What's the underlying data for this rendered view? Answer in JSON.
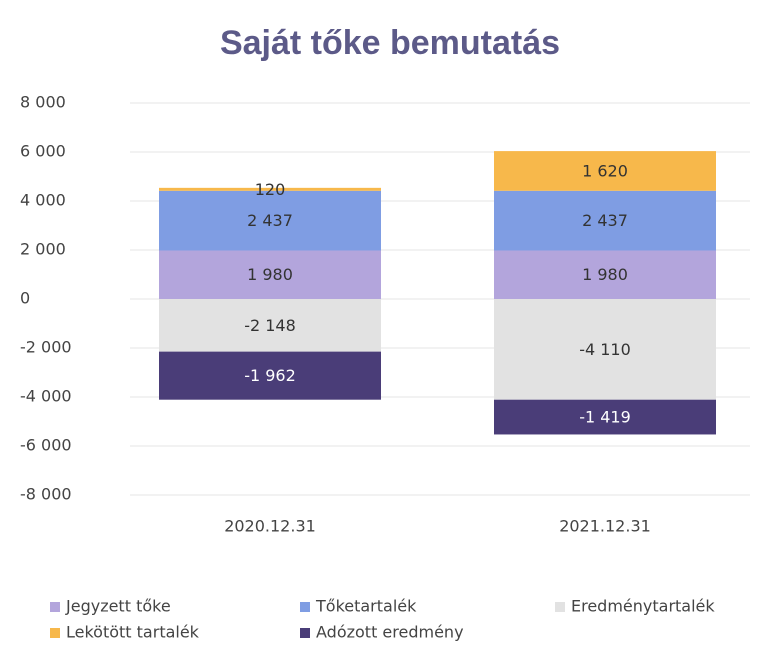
{
  "chart_data": {
    "type": "stacked_bar",
    "title": "Saját tőke bemutatás",
    "categories": [
      "2020.12.31",
      "2021.12.31"
    ],
    "series": [
      {
        "name": "Jegyzett tőke",
        "color": "#b3a5dc",
        "values": [
          1980,
          1980
        ],
        "value_labels": [
          "1 980",
          "1 980"
        ]
      },
      {
        "name": "Tőketartalék",
        "color": "#7f9de3",
        "values": [
          2437,
          2437
        ],
        "value_labels": [
          "2 437",
          "2 437"
        ]
      },
      {
        "name": "Eredménytartalék",
        "color": "#e2e2e2",
        "values": [
          -2148,
          -4110
        ],
        "value_labels": [
          "-2 148",
          "-4 110"
        ]
      },
      {
        "name": "Lekötött tartalék",
        "color": "#f7b84b",
        "values": [
          120,
          1620
        ],
        "value_labels": [
          "120",
          "1 620"
        ]
      },
      {
        "name": "Adózott eredmény",
        "color": "#4a3d78",
        "values": [
          -1962,
          -1419
        ],
        "value_labels": [
          "-1 962",
          "-1 419"
        ]
      }
    ],
    "ylim": [
      -8000,
      8000
    ],
    "yticks": [
      {
        "value": -8000,
        "label": "-8 000"
      },
      {
        "value": -6000,
        "label": "-6 000"
      },
      {
        "value": -4000,
        "label": "-4 000"
      },
      {
        "value": -2000,
        "label": "-2 000"
      },
      0,
      {
        "value": 2000,
        "label": "2 000"
      },
      {
        "value": 4000,
        "label": "4 000"
      },
      {
        "value": 6000,
        "label": "6 000"
      },
      {
        "value": 8000,
        "label": "8 000"
      }
    ],
    "grid": true,
    "legend": "bottom"
  }
}
